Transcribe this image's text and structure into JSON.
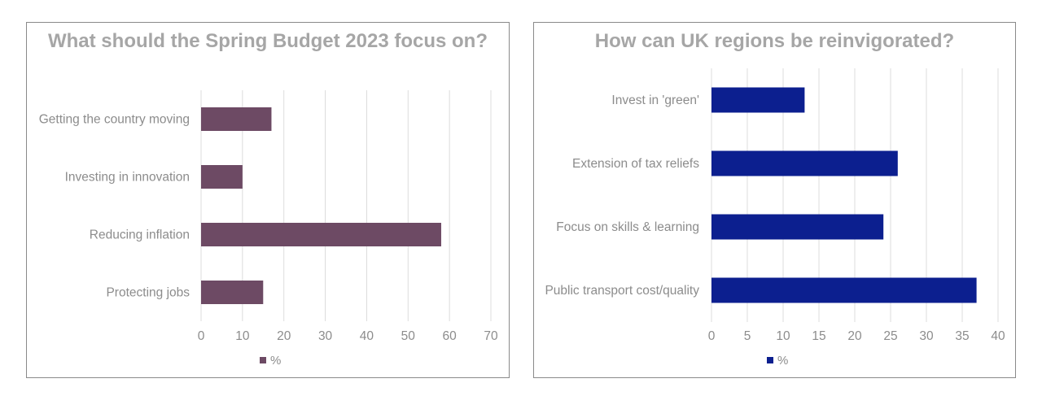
{
  "chart_data": [
    {
      "type": "bar",
      "orientation": "horizontal",
      "title": "What should the Spring Budget 2023 focus on?",
      "categories": [
        "Getting the country moving",
        "Investing in innovation",
        "Reducing inflation",
        "Protecting jobs"
      ],
      "series": [
        {
          "name": "%",
          "values": [
            17,
            10,
            58,
            15
          ],
          "color": "#6d4a64"
        }
      ],
      "xlim": [
        0,
        70
      ],
      "ticks": [
        0,
        10,
        20,
        30,
        40,
        50,
        60,
        70
      ],
      "grid": true,
      "legend": "bottom"
    },
    {
      "type": "bar",
      "orientation": "horizontal",
      "title": "How can UK regions be reinvigorated?",
      "categories": [
        "Invest in 'green'",
        "Extension of tax reliefs",
        "Focus on skills & learning",
        "Public transport cost/quality"
      ],
      "series": [
        {
          "name": "%",
          "values": [
            13,
            26,
            24,
            37
          ],
          "color": "#0c1f8f"
        }
      ],
      "xlim": [
        0,
        40
      ],
      "ticks": [
        0,
        5,
        10,
        15,
        20,
        25,
        30,
        35,
        40
      ],
      "grid": true,
      "legend": "bottom"
    }
  ]
}
